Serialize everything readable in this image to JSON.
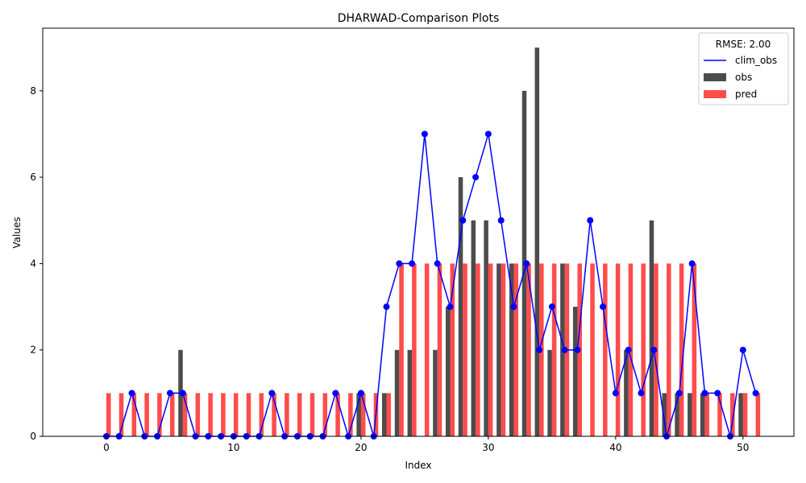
{
  "chart_data": {
    "type": "bar",
    "title": "DHARWAD-Comparison Plots",
    "xlabel": "Index",
    "ylabel": "Values",
    "xlim": [
      -5,
      54
    ],
    "ylim": [
      0,
      9.45
    ],
    "xticks": [
      0,
      10,
      20,
      30,
      40,
      50
    ],
    "yticks": [
      0,
      2,
      4,
      6,
      8
    ],
    "legend": {
      "position": "top-right",
      "title": "RMSE: 2.00"
    },
    "series": [
      {
        "name": "clim_obs",
        "kind": "line",
        "color": "#0000ff",
        "values": [
          0,
          0,
          1,
          0,
          0,
          1,
          1,
          0,
          0,
          0,
          0,
          0,
          0,
          1,
          0,
          0,
          0,
          0,
          1,
          0,
          1,
          0,
          3,
          4,
          4,
          7,
          4,
          3,
          5,
          6,
          7,
          5,
          3,
          4,
          2,
          3,
          2,
          2,
          5,
          3,
          1,
          2,
          1,
          2,
          0,
          1,
          4,
          1,
          1,
          0,
          2,
          1
        ]
      },
      {
        "name": "obs",
        "kind": "bar",
        "color": "#000000",
        "values": [
          0,
          0,
          0,
          0,
          0,
          0,
          2,
          0,
          0,
          0,
          0,
          0,
          0,
          0,
          0,
          0,
          0,
          0,
          0,
          0,
          1,
          0,
          1,
          2,
          2,
          0,
          2,
          3,
          6,
          5,
          5,
          4,
          4,
          8,
          9,
          2,
          4,
          3,
          0,
          0,
          0,
          2,
          0,
          5,
          1,
          1,
          1,
          1,
          0,
          0,
          1,
          0
        ]
      },
      {
        "name": "pred",
        "kind": "bar",
        "color": "#ff0000",
        "values": [
          1,
          1,
          1,
          1,
          1,
          1,
          1,
          1,
          1,
          1,
          1,
          1,
          1,
          1,
          1,
          1,
          1,
          1,
          1,
          1,
          1,
          1,
          1,
          4,
          4,
          4,
          4,
          4,
          4,
          4,
          4,
          4,
          4,
          4,
          4,
          4,
          4,
          4,
          4,
          4,
          4,
          4,
          4,
          4,
          4,
          4,
          4,
          1,
          1,
          1,
          1,
          1
        ]
      }
    ]
  }
}
